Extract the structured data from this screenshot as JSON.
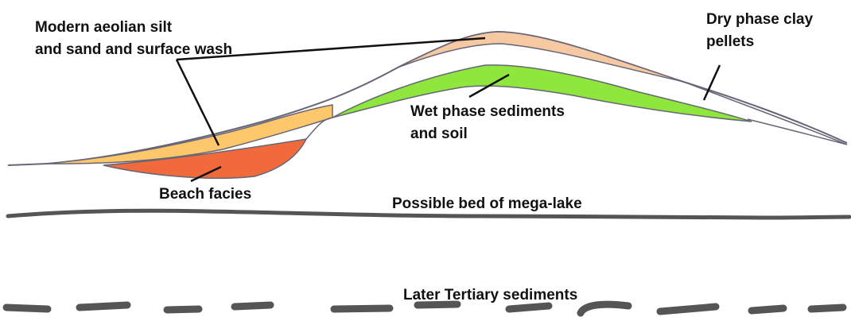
{
  "labels": {
    "aeolian_line1": "Modern aeolian silt",
    "aeolian_line2": "and sand and surface wash",
    "dry_line1": "Dry phase clay",
    "dry_line2": "pellets",
    "wet_line1": "Wet phase sediments",
    "wet_line2": "and soil",
    "beach": "Beach facies",
    "megalake": "Possible bed of mega-lake",
    "tertiary": "Later Tertiary sediments"
  },
  "colors": {
    "aeolian": "#ffc76b",
    "dry_clay": "#f7c9a3",
    "wet": "#8fe63c",
    "beach": "#f06a3c",
    "outline": "#666677",
    "bed": "#555555"
  }
}
